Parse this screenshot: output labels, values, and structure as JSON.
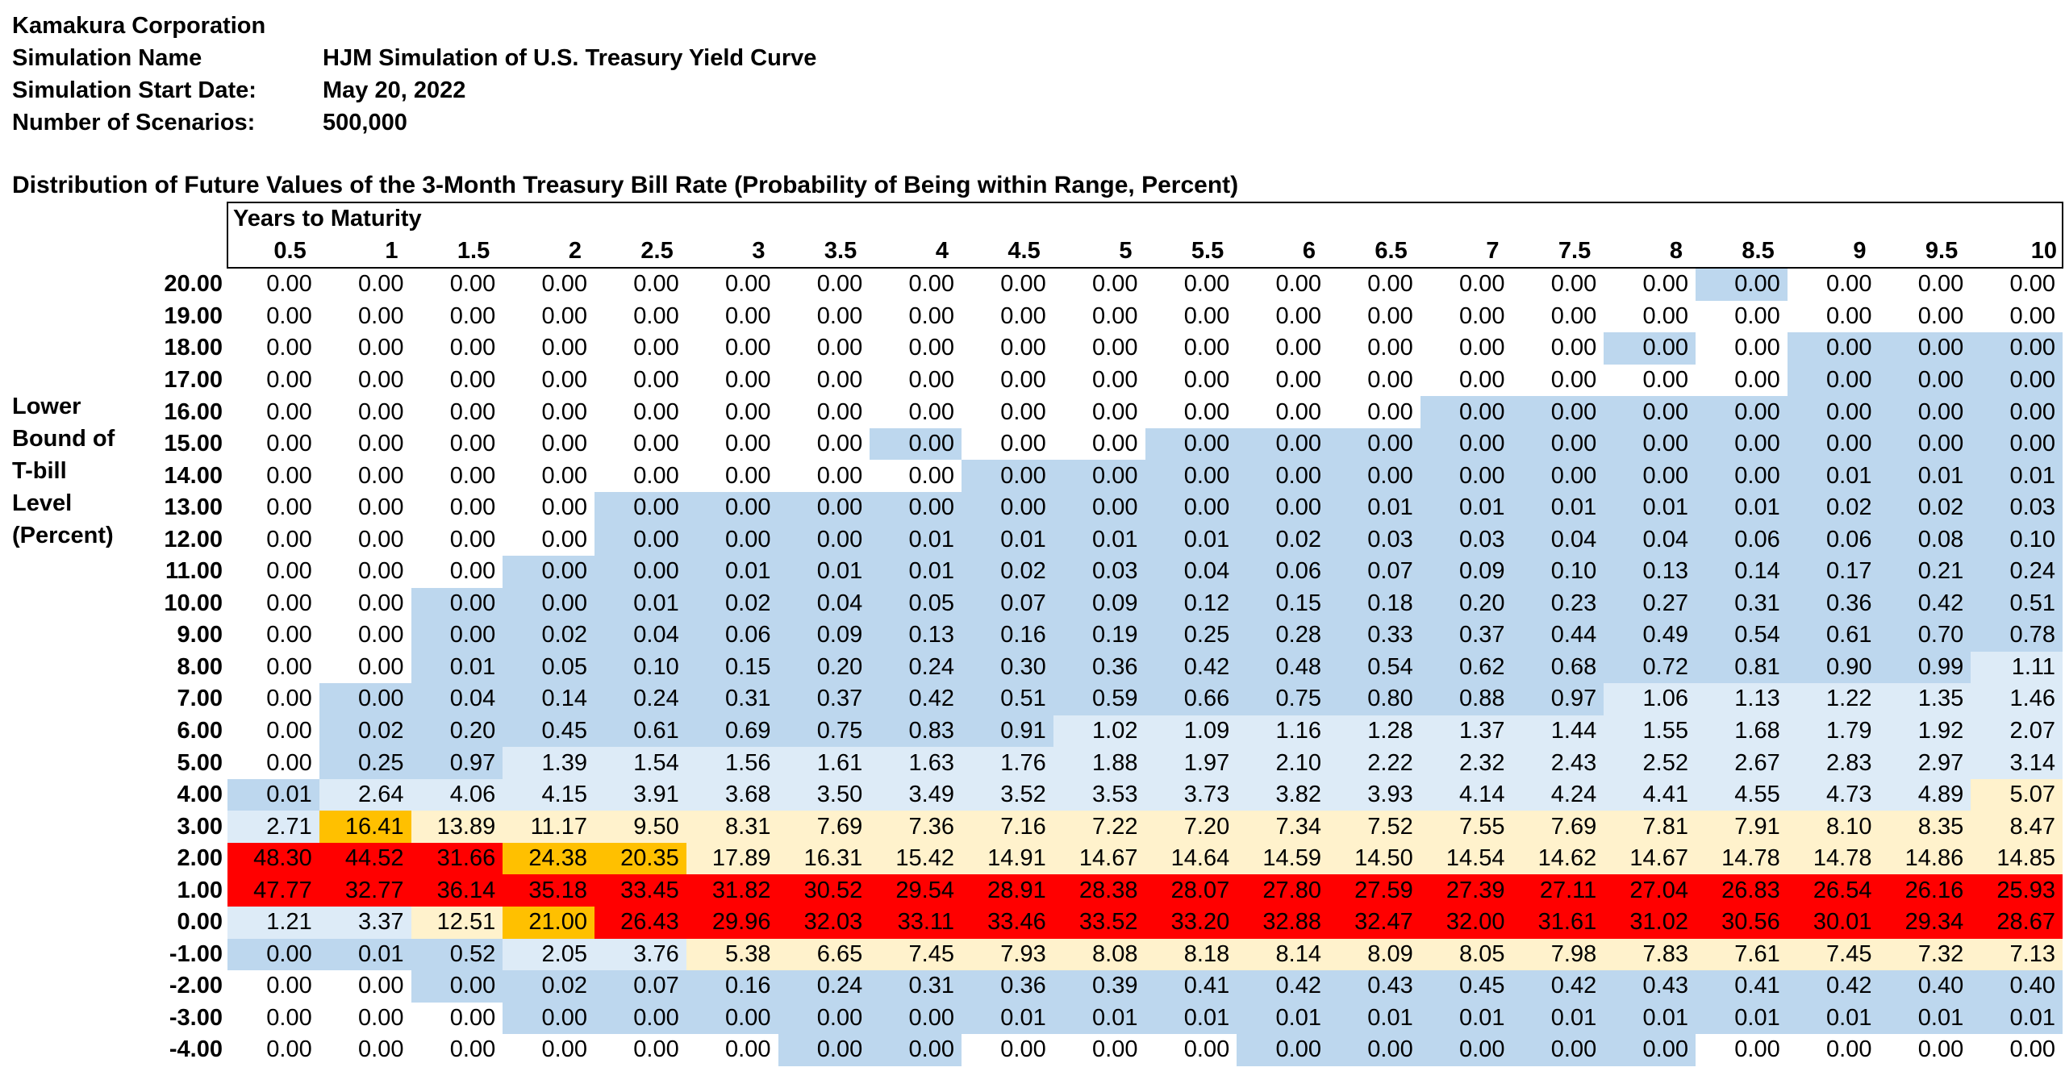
{
  "meta": [
    {
      "label": "Kamakura Corporation",
      "value": ""
    },
    {
      "label": "Simulation Name",
      "value": "HJM Simulation of U.S. Treasury Yield Curve"
    },
    {
      "label": "Simulation Start Date:",
      "value": "May 20, 2022"
    },
    {
      "label": "Number of Scenarios:",
      "value": "500,000"
    }
  ],
  "title": "Distribution of Future Values of the 3-Month Treasury Bill Rate (Probability of Being within Range, Percent)",
  "column_group_label": "Years to Maturity",
  "row_axis_label": [
    "Lower",
    "Bound of",
    "T-bill",
    "Level",
    "(Percent)"
  ],
  "maturities": [
    "0.5",
    "1",
    "1.5",
    "2",
    "2.5",
    "3",
    "3.5",
    "4",
    "4.5",
    "5",
    "5.5",
    "6",
    "6.5",
    "7",
    "7.5",
    "8",
    "8.5",
    "9",
    "9.5",
    "10"
  ],
  "color_scale": {
    "w": "#ffffff",
    "b": "#bdd7ee",
    "lb": "#ddebf7",
    "y": "#fff2cc",
    "o": "#ffc000",
    "r": "#ff0000"
  },
  "rows": [
    {
      "level": "20.00",
      "values": [
        "0.00",
        "0.00",
        "0.00",
        "0.00",
        "0.00",
        "0.00",
        "0.00",
        "0.00",
        "0.00",
        "0.00",
        "0.00",
        "0.00",
        "0.00",
        "0.00",
        "0.00",
        "0.00",
        "0.00",
        "0.00",
        "0.00",
        "0.00"
      ],
      "shade": [
        "w",
        "w",
        "w",
        "w",
        "w",
        "w",
        "w",
        "w",
        "w",
        "w",
        "w",
        "w",
        "w",
        "w",
        "w",
        "w",
        "b",
        "w",
        "w",
        "w"
      ]
    },
    {
      "level": "19.00",
      "values": [
        "0.00",
        "0.00",
        "0.00",
        "0.00",
        "0.00",
        "0.00",
        "0.00",
        "0.00",
        "0.00",
        "0.00",
        "0.00",
        "0.00",
        "0.00",
        "0.00",
        "0.00",
        "0.00",
        "0.00",
        "0.00",
        "0.00",
        "0.00"
      ],
      "shade": [
        "w",
        "w",
        "w",
        "w",
        "w",
        "w",
        "w",
        "w",
        "w",
        "w",
        "w",
        "w",
        "w",
        "w",
        "w",
        "w",
        "w",
        "w",
        "w",
        "w"
      ]
    },
    {
      "level": "18.00",
      "values": [
        "0.00",
        "0.00",
        "0.00",
        "0.00",
        "0.00",
        "0.00",
        "0.00",
        "0.00",
        "0.00",
        "0.00",
        "0.00",
        "0.00",
        "0.00",
        "0.00",
        "0.00",
        "0.00",
        "0.00",
        "0.00",
        "0.00",
        "0.00"
      ],
      "shade": [
        "w",
        "w",
        "w",
        "w",
        "w",
        "w",
        "w",
        "w",
        "w",
        "w",
        "w",
        "w",
        "w",
        "w",
        "w",
        "b",
        "w",
        "b",
        "b",
        "b"
      ]
    },
    {
      "level": "17.00",
      "values": [
        "0.00",
        "0.00",
        "0.00",
        "0.00",
        "0.00",
        "0.00",
        "0.00",
        "0.00",
        "0.00",
        "0.00",
        "0.00",
        "0.00",
        "0.00",
        "0.00",
        "0.00",
        "0.00",
        "0.00",
        "0.00",
        "0.00",
        "0.00"
      ],
      "shade": [
        "w",
        "w",
        "w",
        "w",
        "w",
        "w",
        "w",
        "w",
        "w",
        "w",
        "w",
        "w",
        "w",
        "w",
        "w",
        "w",
        "w",
        "b",
        "b",
        "b"
      ]
    },
    {
      "level": "16.00",
      "values": [
        "0.00",
        "0.00",
        "0.00",
        "0.00",
        "0.00",
        "0.00",
        "0.00",
        "0.00",
        "0.00",
        "0.00",
        "0.00",
        "0.00",
        "0.00",
        "0.00",
        "0.00",
        "0.00",
        "0.00",
        "0.00",
        "0.00",
        "0.00"
      ],
      "shade": [
        "w",
        "w",
        "w",
        "w",
        "w",
        "w",
        "w",
        "w",
        "w",
        "w",
        "w",
        "w",
        "w",
        "b",
        "b",
        "b",
        "b",
        "b",
        "b",
        "b"
      ]
    },
    {
      "level": "15.00",
      "values": [
        "0.00",
        "0.00",
        "0.00",
        "0.00",
        "0.00",
        "0.00",
        "0.00",
        "0.00",
        "0.00",
        "0.00",
        "0.00",
        "0.00",
        "0.00",
        "0.00",
        "0.00",
        "0.00",
        "0.00",
        "0.00",
        "0.00",
        "0.00"
      ],
      "shade": [
        "w",
        "w",
        "w",
        "w",
        "w",
        "w",
        "w",
        "b",
        "w",
        "w",
        "b",
        "b",
        "b",
        "b",
        "b",
        "b",
        "b",
        "b",
        "b",
        "b"
      ]
    },
    {
      "level": "14.00",
      "values": [
        "0.00",
        "0.00",
        "0.00",
        "0.00",
        "0.00",
        "0.00",
        "0.00",
        "0.00",
        "0.00",
        "0.00",
        "0.00",
        "0.00",
        "0.00",
        "0.00",
        "0.00",
        "0.00",
        "0.00",
        "0.01",
        "0.01",
        "0.01"
      ],
      "shade": [
        "w",
        "w",
        "w",
        "w",
        "w",
        "w",
        "w",
        "w",
        "b",
        "b",
        "b",
        "b",
        "b",
        "b",
        "b",
        "b",
        "b",
        "b",
        "b",
        "b"
      ]
    },
    {
      "level": "13.00",
      "values": [
        "0.00",
        "0.00",
        "0.00",
        "0.00",
        "0.00",
        "0.00",
        "0.00",
        "0.00",
        "0.00",
        "0.00",
        "0.00",
        "0.00",
        "0.01",
        "0.01",
        "0.01",
        "0.01",
        "0.01",
        "0.02",
        "0.02",
        "0.03"
      ],
      "shade": [
        "w",
        "w",
        "w",
        "w",
        "b",
        "b",
        "b",
        "b",
        "b",
        "b",
        "b",
        "b",
        "b",
        "b",
        "b",
        "b",
        "b",
        "b",
        "b",
        "b"
      ]
    },
    {
      "level": "12.00",
      "values": [
        "0.00",
        "0.00",
        "0.00",
        "0.00",
        "0.00",
        "0.00",
        "0.00",
        "0.01",
        "0.01",
        "0.01",
        "0.01",
        "0.02",
        "0.03",
        "0.03",
        "0.04",
        "0.04",
        "0.06",
        "0.06",
        "0.08",
        "0.10"
      ],
      "shade": [
        "w",
        "w",
        "w",
        "w",
        "b",
        "b",
        "b",
        "b",
        "b",
        "b",
        "b",
        "b",
        "b",
        "b",
        "b",
        "b",
        "b",
        "b",
        "b",
        "b"
      ]
    },
    {
      "level": "11.00",
      "values": [
        "0.00",
        "0.00",
        "0.00",
        "0.00",
        "0.00",
        "0.01",
        "0.01",
        "0.01",
        "0.02",
        "0.03",
        "0.04",
        "0.06",
        "0.07",
        "0.09",
        "0.10",
        "0.13",
        "0.14",
        "0.17",
        "0.21",
        "0.24"
      ],
      "shade": [
        "w",
        "w",
        "w",
        "b",
        "b",
        "b",
        "b",
        "b",
        "b",
        "b",
        "b",
        "b",
        "b",
        "b",
        "b",
        "b",
        "b",
        "b",
        "b",
        "b"
      ]
    },
    {
      "level": "10.00",
      "values": [
        "0.00",
        "0.00",
        "0.00",
        "0.00",
        "0.01",
        "0.02",
        "0.04",
        "0.05",
        "0.07",
        "0.09",
        "0.12",
        "0.15",
        "0.18",
        "0.20",
        "0.23",
        "0.27",
        "0.31",
        "0.36",
        "0.42",
        "0.51"
      ],
      "shade": [
        "w",
        "w",
        "b",
        "b",
        "b",
        "b",
        "b",
        "b",
        "b",
        "b",
        "b",
        "b",
        "b",
        "b",
        "b",
        "b",
        "b",
        "b",
        "b",
        "b"
      ]
    },
    {
      "level": "9.00",
      "values": [
        "0.00",
        "0.00",
        "0.00",
        "0.02",
        "0.04",
        "0.06",
        "0.09",
        "0.13",
        "0.16",
        "0.19",
        "0.25",
        "0.28",
        "0.33",
        "0.37",
        "0.44",
        "0.49",
        "0.54",
        "0.61",
        "0.70",
        "0.78"
      ],
      "shade": [
        "w",
        "w",
        "b",
        "b",
        "b",
        "b",
        "b",
        "b",
        "b",
        "b",
        "b",
        "b",
        "b",
        "b",
        "b",
        "b",
        "b",
        "b",
        "b",
        "b"
      ]
    },
    {
      "level": "8.00",
      "values": [
        "0.00",
        "0.00",
        "0.01",
        "0.05",
        "0.10",
        "0.15",
        "0.20",
        "0.24",
        "0.30",
        "0.36",
        "0.42",
        "0.48",
        "0.54",
        "0.62",
        "0.68",
        "0.72",
        "0.81",
        "0.90",
        "0.99",
        "1.11"
      ],
      "shade": [
        "w",
        "w",
        "b",
        "b",
        "b",
        "b",
        "b",
        "b",
        "b",
        "b",
        "b",
        "b",
        "b",
        "b",
        "b",
        "b",
        "b",
        "b",
        "b",
        "lb"
      ]
    },
    {
      "level": "7.00",
      "values": [
        "0.00",
        "0.00",
        "0.04",
        "0.14",
        "0.24",
        "0.31",
        "0.37",
        "0.42",
        "0.51",
        "0.59",
        "0.66",
        "0.75",
        "0.80",
        "0.88",
        "0.97",
        "1.06",
        "1.13",
        "1.22",
        "1.35",
        "1.46"
      ],
      "shade": [
        "w",
        "b",
        "b",
        "b",
        "b",
        "b",
        "b",
        "b",
        "b",
        "b",
        "b",
        "b",
        "b",
        "b",
        "b",
        "lb",
        "lb",
        "lb",
        "lb",
        "lb"
      ]
    },
    {
      "level": "6.00",
      "values": [
        "0.00",
        "0.02",
        "0.20",
        "0.45",
        "0.61",
        "0.69",
        "0.75",
        "0.83",
        "0.91",
        "1.02",
        "1.09",
        "1.16",
        "1.28",
        "1.37",
        "1.44",
        "1.55",
        "1.68",
        "1.79",
        "1.92",
        "2.07"
      ],
      "shade": [
        "w",
        "b",
        "b",
        "b",
        "b",
        "b",
        "b",
        "b",
        "b",
        "lb",
        "lb",
        "lb",
        "lb",
        "lb",
        "lb",
        "lb",
        "lb",
        "lb",
        "lb",
        "lb"
      ]
    },
    {
      "level": "5.00",
      "values": [
        "0.00",
        "0.25",
        "0.97",
        "1.39",
        "1.54",
        "1.56",
        "1.61",
        "1.63",
        "1.76",
        "1.88",
        "1.97",
        "2.10",
        "2.22",
        "2.32",
        "2.43",
        "2.52",
        "2.67",
        "2.83",
        "2.97",
        "3.14"
      ],
      "shade": [
        "w",
        "b",
        "b",
        "lb",
        "lb",
        "lb",
        "lb",
        "lb",
        "lb",
        "lb",
        "lb",
        "lb",
        "lb",
        "lb",
        "lb",
        "lb",
        "lb",
        "lb",
        "lb",
        "lb"
      ]
    },
    {
      "level": "4.00",
      "values": [
        "0.01",
        "2.64",
        "4.06",
        "4.15",
        "3.91",
        "3.68",
        "3.50",
        "3.49",
        "3.52",
        "3.53",
        "3.73",
        "3.82",
        "3.93",
        "4.14",
        "4.24",
        "4.41",
        "4.55",
        "4.73",
        "4.89",
        "5.07"
      ],
      "shade": [
        "b",
        "lb",
        "lb",
        "lb",
        "lb",
        "lb",
        "lb",
        "lb",
        "lb",
        "lb",
        "lb",
        "lb",
        "lb",
        "lb",
        "lb",
        "lb",
        "lb",
        "lb",
        "lb",
        "y"
      ]
    },
    {
      "level": "3.00",
      "values": [
        "2.71",
        "16.41",
        "13.89",
        "11.17",
        "9.50",
        "8.31",
        "7.69",
        "7.36",
        "7.16",
        "7.22",
        "7.20",
        "7.34",
        "7.52",
        "7.55",
        "7.69",
        "7.81",
        "7.91",
        "8.10",
        "8.35",
        "8.47"
      ],
      "shade": [
        "lb",
        "o",
        "y",
        "y",
        "y",
        "y",
        "y",
        "y",
        "y",
        "y",
        "y",
        "y",
        "y",
        "y",
        "y",
        "y",
        "y",
        "y",
        "y",
        "y"
      ]
    },
    {
      "level": "2.00",
      "values": [
        "48.30",
        "44.52",
        "31.66",
        "24.38",
        "20.35",
        "17.89",
        "16.31",
        "15.42",
        "14.91",
        "14.67",
        "14.64",
        "14.59",
        "14.50",
        "14.54",
        "14.62",
        "14.67",
        "14.78",
        "14.78",
        "14.86",
        "14.85"
      ],
      "shade": [
        "r",
        "r",
        "r",
        "o",
        "o",
        "y",
        "y",
        "y",
        "y",
        "y",
        "y",
        "y",
        "y",
        "y",
        "y",
        "y",
        "y",
        "y",
        "y",
        "y"
      ]
    },
    {
      "level": "1.00",
      "values": [
        "47.77",
        "32.77",
        "36.14",
        "35.18",
        "33.45",
        "31.82",
        "30.52",
        "29.54",
        "28.91",
        "28.38",
        "28.07",
        "27.80",
        "27.59",
        "27.39",
        "27.11",
        "27.04",
        "26.83",
        "26.54",
        "26.16",
        "25.93"
      ],
      "shade": [
        "r",
        "r",
        "r",
        "r",
        "r",
        "r",
        "r",
        "r",
        "r",
        "r",
        "r",
        "r",
        "r",
        "r",
        "r",
        "r",
        "r",
        "r",
        "r",
        "r"
      ]
    },
    {
      "level": "0.00",
      "values": [
        "1.21",
        "3.37",
        "12.51",
        "21.00",
        "26.43",
        "29.96",
        "32.03",
        "33.11",
        "33.46",
        "33.52",
        "33.20",
        "32.88",
        "32.47",
        "32.00",
        "31.61",
        "31.02",
        "30.56",
        "30.01",
        "29.34",
        "28.67"
      ],
      "shade": [
        "lb",
        "lb",
        "y",
        "o",
        "r",
        "r",
        "r",
        "r",
        "r",
        "r",
        "r",
        "r",
        "r",
        "r",
        "r",
        "r",
        "r",
        "r",
        "r",
        "r"
      ]
    },
    {
      "level": "-1.00",
      "values": [
        "0.00",
        "0.01",
        "0.52",
        "2.05",
        "3.76",
        "5.38",
        "6.65",
        "7.45",
        "7.93",
        "8.08",
        "8.18",
        "8.14",
        "8.09",
        "8.05",
        "7.98",
        "7.83",
        "7.61",
        "7.45",
        "7.32",
        "7.13"
      ],
      "shade": [
        "b",
        "b",
        "b",
        "lb",
        "lb",
        "y",
        "y",
        "y",
        "y",
        "y",
        "y",
        "y",
        "y",
        "y",
        "y",
        "y",
        "y",
        "y",
        "y",
        "y"
      ]
    },
    {
      "level": "-2.00",
      "values": [
        "0.00",
        "0.00",
        "0.00",
        "0.02",
        "0.07",
        "0.16",
        "0.24",
        "0.31",
        "0.36",
        "0.39",
        "0.41",
        "0.42",
        "0.43",
        "0.45",
        "0.42",
        "0.43",
        "0.41",
        "0.42",
        "0.40",
        "0.40"
      ],
      "shade": [
        "w",
        "w",
        "b",
        "b",
        "b",
        "b",
        "b",
        "b",
        "b",
        "b",
        "b",
        "b",
        "b",
        "b",
        "b",
        "b",
        "b",
        "b",
        "b",
        "b"
      ]
    },
    {
      "level": "-3.00",
      "values": [
        "0.00",
        "0.00",
        "0.00",
        "0.00",
        "0.00",
        "0.00",
        "0.00",
        "0.00",
        "0.01",
        "0.01",
        "0.01",
        "0.01",
        "0.01",
        "0.01",
        "0.01",
        "0.01",
        "0.01",
        "0.01",
        "0.01",
        "0.01"
      ],
      "shade": [
        "w",
        "w",
        "w",
        "b",
        "b",
        "b",
        "b",
        "b",
        "b",
        "b",
        "b",
        "b",
        "b",
        "b",
        "b",
        "b",
        "b",
        "b",
        "b",
        "b"
      ]
    },
    {
      "level": "-4.00",
      "values": [
        "0.00",
        "0.00",
        "0.00",
        "0.00",
        "0.00",
        "0.00",
        "0.00",
        "0.00",
        "0.00",
        "0.00",
        "0.00",
        "0.00",
        "0.00",
        "0.00",
        "0.00",
        "0.00",
        "0.00",
        "0.00",
        "0.00",
        "0.00"
      ],
      "shade": [
        "w",
        "w",
        "w",
        "w",
        "w",
        "w",
        "b",
        "b",
        "w",
        "w",
        "w",
        "b",
        "b",
        "b",
        "b",
        "b",
        "w",
        "w",
        "w",
        "w"
      ]
    }
  ]
}
